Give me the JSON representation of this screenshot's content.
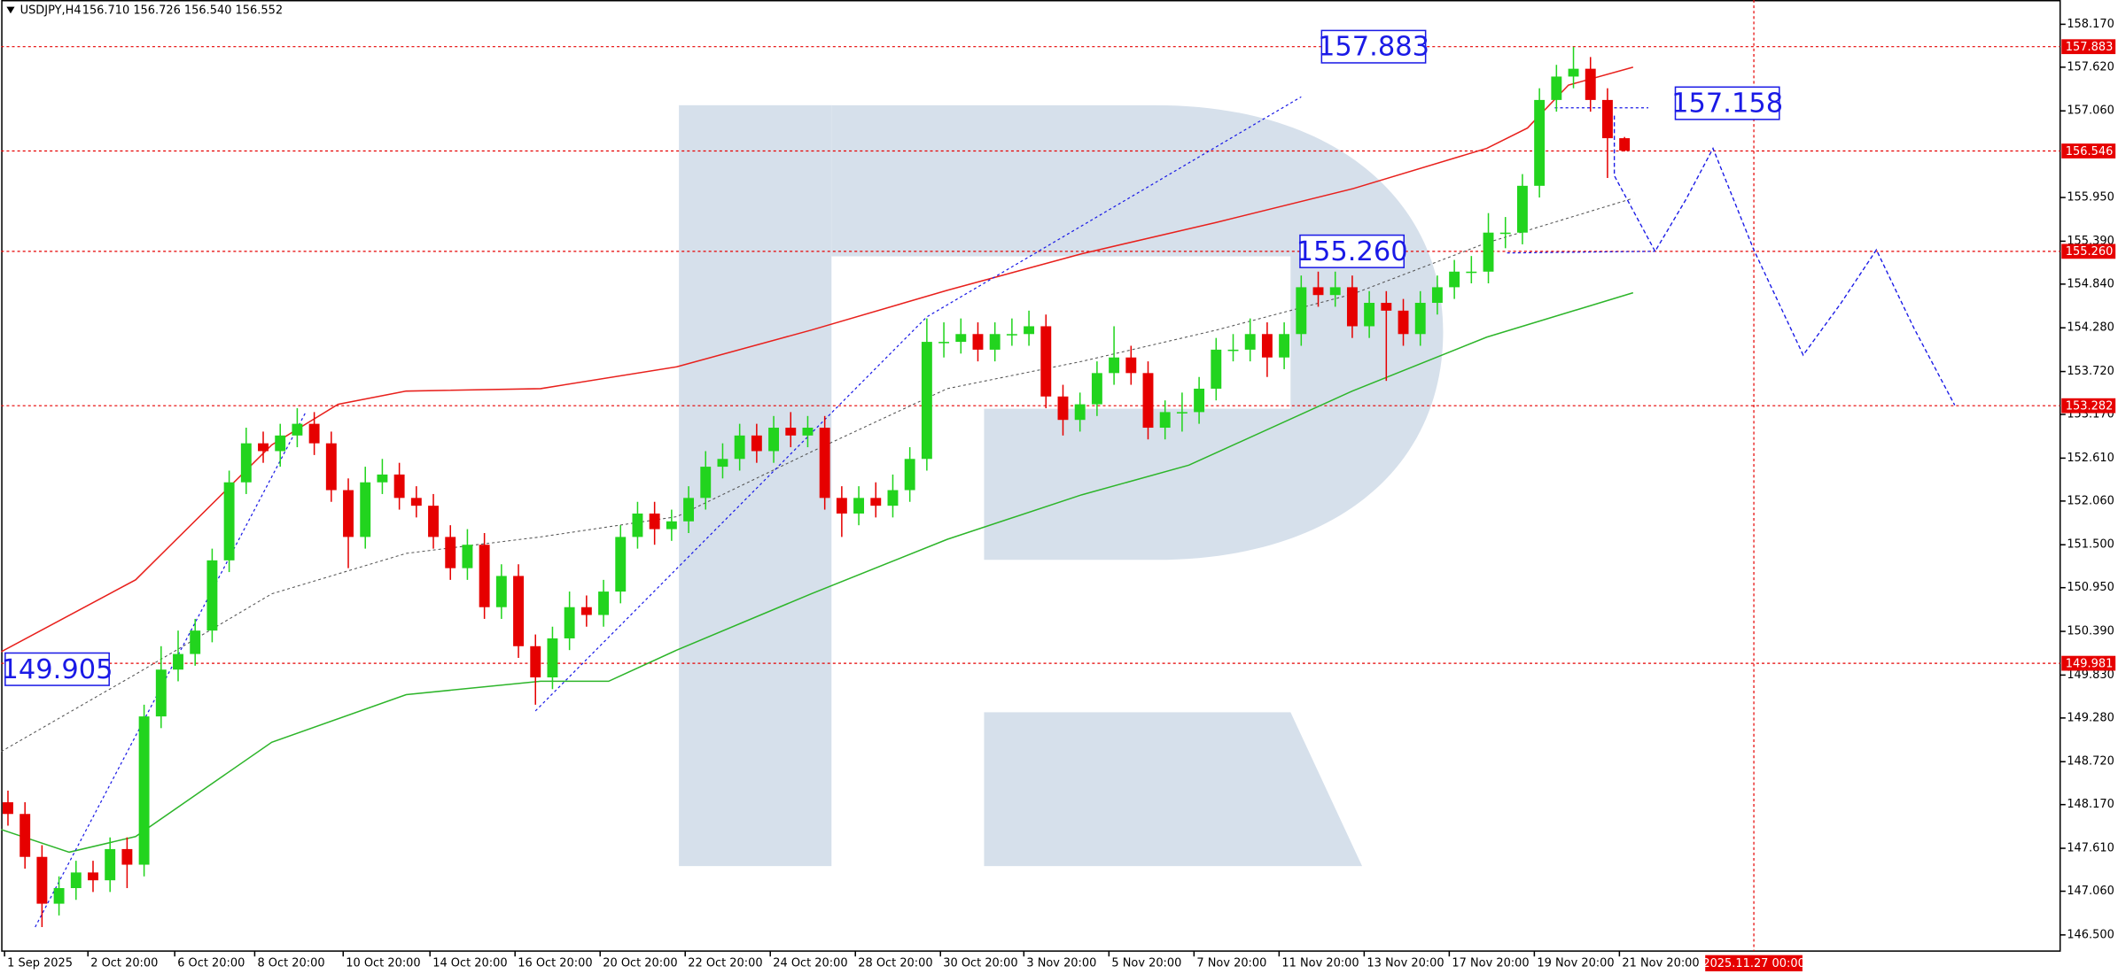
{
  "chart_data": {
    "type": "candlestick",
    "title": "USDJPY,H4",
    "subtitle": "156.710 156.726 156.540 156.552",
    "up_color": "#22d41e",
    "down_color": "#e60000",
    "xlim": [
      -0.4,
      120.6
    ],
    "ylim": [
      146.293,
      158.481
    ],
    "yticks": [
      {
        "value": 158.17,
        "label": "158.170"
      },
      {
        "value": 157.62,
        "label": "157.620"
      },
      {
        "value": 157.06,
        "label": "157.060"
      },
      {
        "value": 155.95,
        "label": "155.950"
      },
      {
        "value": 155.39,
        "label": "155.390"
      },
      {
        "value": 154.84,
        "label": "154.840"
      },
      {
        "value": 154.28,
        "label": "154.280"
      },
      {
        "value": 153.72,
        "label": "153.720"
      },
      {
        "value": 153.17,
        "label": "153.170"
      },
      {
        "value": 152.61,
        "label": "152.610"
      },
      {
        "value": 152.06,
        "label": "152.060"
      },
      {
        "value": 151.5,
        "label": "151.500"
      },
      {
        "value": 150.95,
        "label": "150.950"
      },
      {
        "value": 150.39,
        "label": "150.390"
      },
      {
        "value": 149.83,
        "label": "149.830"
      },
      {
        "value": 149.28,
        "label": "149.280"
      },
      {
        "value": 148.72,
        "label": "148.720"
      },
      {
        "value": 148.17,
        "label": "148.170"
      },
      {
        "value": 147.61,
        "label": "147.610"
      },
      {
        "value": 147.06,
        "label": "147.060"
      },
      {
        "value": 146.5,
        "label": "146.500"
      }
    ],
    "xticks": [
      {
        "value": -0.2,
        "label": "1 Sep 2025"
      },
      {
        "value": 4.7,
        "label": "2 Oct 20:00"
      },
      {
        "value": 9.8,
        "label": "6 Oct 20:00"
      },
      {
        "value": 14.5,
        "label": "8 Oct 20:00"
      },
      {
        "value": 19.7,
        "label": "10 Oct 20:00"
      },
      {
        "value": 24.8,
        "label": "14 Oct 20:00"
      },
      {
        "value": 29.8,
        "label": "16 Oct 20:00"
      },
      {
        "value": 34.8,
        "label": "20 Oct 20:00"
      },
      {
        "value": 39.8,
        "label": "22 Oct 20:00"
      },
      {
        "value": 44.8,
        "label": "24 Oct 20:00"
      },
      {
        "value": 49.8,
        "label": "28 Oct 20:00"
      },
      {
        "value": 54.8,
        "label": "30 Oct 20:00"
      },
      {
        "value": 59.7,
        "label": "3 Nov 20:00"
      },
      {
        "value": 64.7,
        "label": "5 Nov 20:00"
      },
      {
        "value": 69.7,
        "label": "7 Nov 20:00"
      },
      {
        "value": 74.7,
        "label": "11 Nov 20:00"
      },
      {
        "value": 79.7,
        "label": "13 Nov 20:00"
      },
      {
        "value": 84.7,
        "label": "17 Nov 20:00"
      },
      {
        "value": 89.7,
        "label": "19 Nov 20:00"
      },
      {
        "value": 94.7,
        "label": "21 Nov 20:00"
      }
    ],
    "open": [
      148.2,
      148.05,
      147.5,
      146.9,
      147.1,
      147.3,
      147.2,
      147.6,
      147.4,
      149.3,
      149.9,
      150.1,
      150.4,
      151.3,
      152.3,
      152.8,
      152.7,
      152.9,
      153.05,
      152.8,
      152.2,
      151.6,
      152.3,
      152.4,
      152.1,
      152,
      151.6,
      151.2,
      151.5,
      150.7,
      151.1,
      150.2,
      149.8,
      150.3,
      150.7,
      150.6,
      150.9,
      151.6,
      151.9,
      151.7,
      151.8,
      152.1,
      152.5,
      152.6,
      152.9,
      152.7,
      153,
      152.9,
      153,
      152.1,
      151.9,
      152.1,
      152,
      152.2,
      152.6,
      154.1,
      154.1,
      154.2,
      154,
      154.2,
      154.2,
      154.3,
      153.4,
      153.1,
      153.3,
      153.7,
      153.9,
      153.7,
      153,
      153.2,
      153.2,
      153.5,
      154,
      154,
      154.2,
      153.9,
      154.2,
      154.8,
      154.7,
      154.8,
      154.3,
      154.6,
      154.5,
      154.2,
      154.6,
      154.8,
      155,
      155,
      155.5,
      155.5,
      156.1,
      157.2,
      157.5,
      157.6,
      157.2,
      156.71
    ],
    "high": [
      148.35,
      148.2,
      147.65,
      147.25,
      147.45,
      147.45,
      147.75,
      147.75,
      149.45,
      150.2,
      150.4,
      150.55,
      151.45,
      152.45,
      153,
      152.95,
      153.05,
      153.25,
      153.2,
      152.95,
      152.35,
      152.5,
      152.6,
      152.55,
      152.25,
      152.15,
      151.75,
      151.7,
      151.65,
      151.25,
      151.25,
      150.35,
      150.45,
      150.9,
      150.85,
      151.05,
      151.75,
      152.05,
      152.05,
      151.95,
      152.25,
      152.7,
      152.8,
      153.05,
      153.05,
      153.15,
      153.2,
      153.15,
      153.15,
      152.25,
      152.25,
      152.3,
      152.4,
      152.75,
      154.4,
      154.35,
      154.4,
      154.35,
      154.35,
      154.4,
      154.5,
      154.45,
      153.55,
      153.45,
      153.85,
      154.3,
      154.05,
      153.85,
      153.35,
      153.45,
      153.65,
      154.15,
      154.2,
      154.4,
      154.35,
      154.35,
      154.95,
      155,
      155,
      154.95,
      154.75,
      154.75,
      154.65,
      154.75,
      154.95,
      155.15,
      155.2,
      155.75,
      155.7,
      156.25,
      157.35,
      157.65,
      157.88,
      157.75,
      157.35,
      156.726
    ],
    "low": [
      147.9,
      147.35,
      146.6,
      146.75,
      146.95,
      147.05,
      147.05,
      147.1,
      147.25,
      149.15,
      149.75,
      149.95,
      150.25,
      151.15,
      152.15,
      152.55,
      152.5,
      152.75,
      152.65,
      152.05,
      151.2,
      151.45,
      152.15,
      151.95,
      151.85,
      151.45,
      151.05,
      151.05,
      150.55,
      150.55,
      150.05,
      149.45,
      149.65,
      150.15,
      150.45,
      150.45,
      150.75,
      151.45,
      151.5,
      151.55,
      151.65,
      151.95,
      152.35,
      152.45,
      152.55,
      152.55,
      152.75,
      152.75,
      151.95,
      151.6,
      151.75,
      151.85,
      151.85,
      152.05,
      152.45,
      153.9,
      153.95,
      153.85,
      153.85,
      154.05,
      154.05,
      153.25,
      152.9,
      152.95,
      153.15,
      153.55,
      153.55,
      152.85,
      152.85,
      152.95,
      153.05,
      153.35,
      153.85,
      153.85,
      153.65,
      153.75,
      154.05,
      154.55,
      154.55,
      154.15,
      154.15,
      153.6,
      154.05,
      154.05,
      154.45,
      154.65,
      154.85,
      154.85,
      155.3,
      155.35,
      155.95,
      157.05,
      157.35,
      157.05,
      156.2,
      156.54
    ],
    "close": [
      148.05,
      147.5,
      146.9,
      147.1,
      147.3,
      147.2,
      147.6,
      147.4,
      149.3,
      149.9,
      150.1,
      150.4,
      151.3,
      152.3,
      152.8,
      152.7,
      152.9,
      153.05,
      152.8,
      152.2,
      151.6,
      152.3,
      152.4,
      152.1,
      152,
      151.6,
      151.2,
      151.5,
      150.7,
      151.1,
      150.2,
      149.8,
      150.3,
      150.7,
      150.6,
      150.9,
      151.6,
      151.9,
      151.7,
      151.8,
      152.1,
      152.5,
      152.6,
      152.9,
      152.7,
      153,
      152.9,
      153,
      152.1,
      151.9,
      152.1,
      152,
      152.2,
      152.6,
      154.1,
      154.1,
      154.2,
      154,
      154.2,
      154.2,
      154.3,
      153.4,
      153.1,
      153.3,
      153.7,
      153.9,
      153.7,
      153,
      153.2,
      153.2,
      153.5,
      154,
      154,
      154.2,
      153.9,
      154.2,
      154.8,
      154.7,
      154.8,
      154.3,
      154.6,
      154.5,
      154.2,
      154.6,
      154.8,
      155,
      155,
      155.5,
      155.5,
      156.1,
      157.2,
      157.5,
      157.6,
      157.2,
      156.71,
      156.552
    ],
    "lines": [
      {
        "color": "#e8201c",
        "style": "solid",
        "x": [
          -0.4,
          7.5,
          15.5,
          19.4,
          23.4,
          31.3,
          39.3,
          47.2,
          55.2,
          63.1,
          71.0,
          79.0,
          86.9,
          89.3,
          91.7,
          95.5
        ],
        "values": [
          150.13,
          151.05,
          152.78,
          153.3,
          153.47,
          153.5,
          153.78,
          154.25,
          154.76,
          155.23,
          155.63,
          156.06,
          156.58,
          156.84,
          157.39,
          157.62
        ]
      },
      {
        "color": "#2db52a",
        "style": "solid",
        "x": [
          -0.4,
          3.6,
          7.5,
          15.5,
          23.4,
          31.3,
          35.3,
          39.3,
          47.2,
          55.2,
          63.1,
          69.4,
          79.0,
          86.9,
          95.5
        ],
        "values": [
          147.85,
          147.56,
          147.76,
          148.97,
          149.58,
          149.75,
          149.75,
          150.15,
          150.87,
          151.57,
          152.14,
          152.52,
          153.47,
          154.16,
          154.73
        ]
      },
      {
        "color": "#555555",
        "style": "dotted",
        "x": [
          -0.4,
          7.5,
          15.5,
          23.4,
          31.3,
          39.3,
          47.2,
          55.2,
          63.1,
          71.0,
          79.0,
          86.9,
          95.5
        ],
        "values": [
          148.85,
          149.84,
          150.87,
          151.39,
          151.6,
          151.86,
          152.69,
          153.5,
          153.85,
          154.25,
          154.71,
          155.37,
          155.94
        ]
      }
    ],
    "trendlines": [
      {
        "x": [
          1.6,
          17.5
        ],
        "values": [
          146.6,
          153.2
        ]
      },
      {
        "x": [
          31.0,
          54.0,
          76.0
        ],
        "values": [
          149.37,
          154.42,
          157.24
        ]
      },
      {
        "x": [
          88.1,
          96.8
        ],
        "values": [
          155.24,
          155.26
        ]
      },
      {
        "x": [
          90.9,
          96.4
        ],
        "values": [
          157.1,
          157.1
        ]
      }
    ],
    "forecast": {
      "color": "#1a1ae6",
      "x": [
        94.4,
        94.4,
        96.8,
        98.6,
        100.2,
        102.6,
        105.5,
        107.7,
        109.8,
        112.0,
        114.4
      ],
      "values": [
        157.0,
        156.23,
        155.26,
        155.92,
        156.58,
        155.28,
        153.93,
        154.59,
        155.28,
        154.28,
        153.29
      ]
    },
    "levels": {
      "color": "#e60000",
      "values": [
        {
          "value": 157.883,
          "label": "157.883"
        },
        {
          "value": 156.546,
          "label": "156.546"
        },
        {
          "value": 155.26,
          "label": "155.260"
        },
        {
          "value": 153.282,
          "label": "153.282"
        },
        {
          "value": 149.981,
          "label": "149.981"
        }
      ]
    },
    "vline": {
      "value": 102.6,
      "label": "2025.11.27 00:00",
      "color": "#e60000"
    },
    "annotations": [
      {
        "value": 157.883,
        "label": "157.883"
      },
      {
        "value": 157.158,
        "label": "157.158"
      },
      {
        "value": 155.26,
        "label": "155.260"
      },
      {
        "value": 149.905,
        "label": "149.905"
      }
    ]
  }
}
